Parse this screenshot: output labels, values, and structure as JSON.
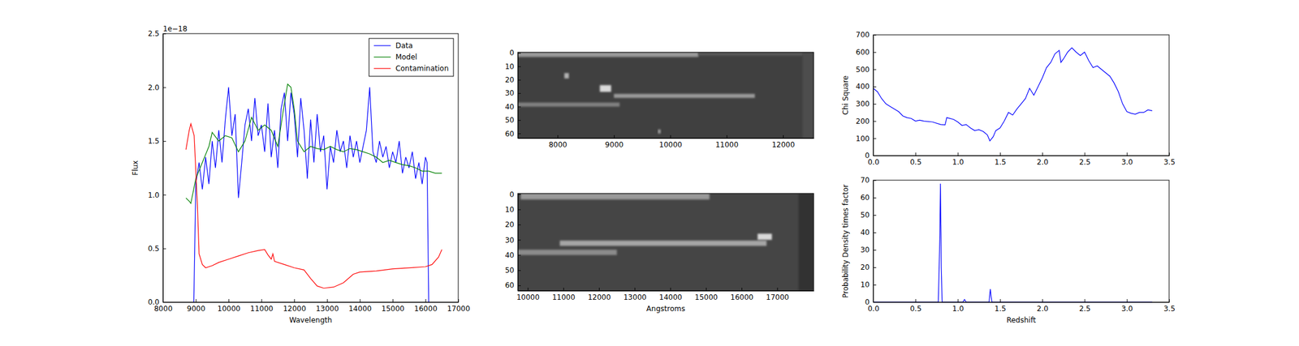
{
  "chart_data": [
    {
      "type": "line",
      "xlabel": "Wavelength",
      "ylabel": "Flux",
      "annotations": [
        "1e−18"
      ],
      "xlim": [
        8000,
        17000
      ],
      "ylim": [
        0,
        2.5
      ],
      "xticks": [
        8000,
        9000,
        10000,
        11000,
        12000,
        13000,
        14000,
        15000,
        16000,
        17000
      ],
      "yticks": [
        {
          "value": 0,
          "label": "0.0"
        },
        0.5,
        {
          "value": 1,
          "label": "1.0"
        },
        1.5,
        {
          "value": 2,
          "label": "2.0"
        },
        2.5
      ],
      "legend": "upper right",
      "series": [
        {
          "name": "Data",
          "color": "#0000ff",
          "x": [
            8940,
            9000,
            9100,
            9200,
            9300,
            9400,
            9500,
            9600,
            9700,
            9800,
            9900,
            10000,
            10100,
            10200,
            10300,
            10400,
            10500,
            10600,
            10700,
            10800,
            10900,
            11000,
            11100,
            11200,
            11300,
            11400,
            11500,
            11600,
            11700,
            11800,
            11900,
            12000,
            12100,
            12200,
            12300,
            12400,
            12500,
            12600,
            12700,
            12800,
            12900,
            13000,
            13100,
            13200,
            13300,
            13400,
            13500,
            13600,
            13700,
            13800,
            13900,
            14000,
            14100,
            14200,
            14300,
            14400,
            14500,
            14600,
            14700,
            14800,
            14900,
            15000,
            15100,
            15200,
            15300,
            15400,
            15500,
            15600,
            15700,
            15800,
            15900,
            16000,
            16050,
            16100
          ],
          "values": [
            0,
            1.1,
            1.3,
            1.05,
            1.35,
            1.1,
            1.5,
            1.25,
            1.6,
            1.3,
            1.7,
            2.0,
            1.55,
            1.75,
            0.97,
            1.3,
            1.65,
            1.8,
            1.5,
            1.9,
            1.55,
            1.65,
            1.4,
            1.85,
            1.35,
            1.6,
            1.25,
            1.8,
            1.95,
            1.5,
            1.95,
            1.75,
            1.35,
            1.9,
            1.6,
            1.15,
            1.7,
            1.3,
            1.75,
            1.4,
            1.55,
            1.05,
            1.45,
            1.3,
            1.6,
            1.4,
            1.5,
            1.25,
            1.55,
            1.35,
            1.5,
            1.3,
            1.45,
            1.6,
            2.0,
            1.4,
            1.3,
            1.5,
            1.35,
            1.45,
            1.25,
            1.4,
            1.3,
            1.5,
            1.2,
            1.35,
            1.25,
            1.4,
            1.15,
            1.3,
            1.1,
            1.35,
            1.3,
            0
          ]
        },
        {
          "name": "Model",
          "color": "#008000",
          "x": [
            8700,
            8800,
            8850,
            9000,
            9200,
            9400,
            9500,
            9700,
            9900,
            10100,
            10300,
            10500,
            10700,
            10900,
            11100,
            11300,
            11500,
            11700,
            11800,
            11900,
            12000,
            12100,
            12300,
            12500,
            12700,
            12900,
            13100,
            13300,
            13500,
            13700,
            13900,
            14100,
            14300,
            14500,
            14700,
            14900,
            15100,
            15300,
            15500,
            15700,
            15900,
            16100,
            16300,
            16500
          ],
          "values": [
            0.97,
            0.94,
            0.92,
            1.15,
            1.3,
            1.45,
            1.58,
            1.5,
            1.55,
            1.53,
            1.4,
            1.5,
            1.72,
            1.6,
            1.65,
            1.6,
            1.45,
            1.85,
            2.03,
            2.0,
            1.8,
            1.5,
            1.4,
            1.45,
            1.43,
            1.42,
            1.45,
            1.42,
            1.4,
            1.43,
            1.42,
            1.4,
            1.38,
            1.35,
            1.3,
            1.32,
            1.3,
            1.28,
            1.27,
            1.25,
            1.22,
            1.22,
            1.2,
            1.2
          ]
        },
        {
          "name": "Contamination",
          "color": "#ff0000",
          "x": [
            8700,
            8800,
            8850,
            8950,
            9050,
            9100,
            9200,
            9300,
            9500,
            9700,
            10000,
            10300,
            10600,
            10900,
            11100,
            11200,
            11300,
            11350,
            11400,
            11700,
            12000,
            12300,
            12500,
            12700,
            12900,
            13200,
            13500,
            13800,
            14000,
            14500,
            15000,
            15500,
            16000,
            16200,
            16400,
            16500
          ],
          "values": [
            1.42,
            1.6,
            1.66,
            1.55,
            0.9,
            0.45,
            0.35,
            0.32,
            0.34,
            0.37,
            0.4,
            0.43,
            0.46,
            0.48,
            0.49,
            0.44,
            0.4,
            0.45,
            0.38,
            0.35,
            0.32,
            0.3,
            0.22,
            0.15,
            0.13,
            0.14,
            0.18,
            0.26,
            0.28,
            0.29,
            0.31,
            0.32,
            0.33,
            0.35,
            0.42,
            0.49
          ]
        }
      ]
    },
    {
      "type": "image",
      "xlim": [
        7294,
        12544
      ],
      "ylim": [
        -0.5,
        63.5
      ],
      "xticks": [
        8000,
        9000,
        10000,
        11000,
        12000
      ],
      "yticks": [
        0,
        10,
        20,
        30,
        40,
        50,
        60
      ],
      "background": 0.25,
      "features": [
        {
          "x": [
            7294,
            10500
          ],
          "y": [
            -0.5,
            3
          ],
          "level": 0.6
        },
        {
          "x": [
            10500,
            12350
          ],
          "y": [
            -0.5,
            2
          ],
          "level": 0.35
        },
        {
          "x": [
            7294,
            9100
          ],
          "y": [
            37,
            40
          ],
          "level": 0.5
        },
        {
          "x": [
            9000,
            11500
          ],
          "y": [
            30.5,
            33.5
          ],
          "level": 0.6
        },
        {
          "x": [
            8750,
            8950
          ],
          "y": [
            24,
            29
          ],
          "level": 0.85
        },
        {
          "x": [
            8120,
            8200
          ],
          "y": [
            15,
            19
          ],
          "level": 0.7
        },
        {
          "x": [
            9780,
            9830
          ],
          "y": [
            57,
            60
          ],
          "level": 0.6
        },
        {
          "x": [
            12350,
            12544
          ],
          "y": [
            -0.5,
            63.5
          ],
          "level": 0.3
        }
      ]
    },
    {
      "type": "image",
      "xlabel": "Angstroms",
      "xlim": [
        9721,
        18023
      ],
      "ylim": [
        -0.5,
        63.5
      ],
      "xticks": [
        10000,
        11000,
        12000,
        13000,
        14000,
        15000,
        16000,
        17000
      ],
      "yticks": [
        0,
        10,
        20,
        30,
        40,
        50,
        60
      ],
      "background": 0.27,
      "features": [
        {
          "x": [
            9800,
            15100
          ],
          "y": [
            -0.5,
            3.5
          ],
          "level": 0.6
        },
        {
          "x": [
            9721,
            12500
          ],
          "y": [
            36.5,
            40
          ],
          "level": 0.55
        },
        {
          "x": [
            10900,
            16700
          ],
          "y": [
            30.5,
            34
          ],
          "level": 0.65
        },
        {
          "x": [
            16450,
            16850
          ],
          "y": [
            26,
            30
          ],
          "level": 0.85
        },
        {
          "x": [
            17600,
            18023
          ],
          "y": [
            -0.5,
            63.5
          ],
          "level": 0.2
        }
      ]
    },
    {
      "type": "line",
      "ylabel": "Chi Square",
      "xlim": [
        0,
        3.5
      ],
      "ylim": [
        0,
        700
      ],
      "xticks": [
        {
          "value": 0,
          "label": "0.0"
        },
        0.5,
        {
          "value": 1,
          "label": "1.0"
        },
        1.5,
        {
          "value": 2,
          "label": "2.0"
        },
        2.5,
        {
          "value": 3,
          "label": "3.0"
        },
        3.5
      ],
      "yticks": [
        0,
        100,
        200,
        300,
        400,
        500,
        600,
        700
      ],
      "series": [
        {
          "color": "#0000ff",
          "x": [
            0,
            0.05,
            0.1,
            0.15,
            0.2,
            0.3,
            0.35,
            0.4,
            0.45,
            0.5,
            0.55,
            0.6,
            0.7,
            0.8,
            0.85,
            0.87,
            0.95,
            1.0,
            1.05,
            1.1,
            1.15,
            1.2,
            1.25,
            1.3,
            1.35,
            1.38,
            1.42,
            1.45,
            1.5,
            1.55,
            1.6,
            1.65,
            1.7,
            1.75,
            1.8,
            1.85,
            1.9,
            1.95,
            2.0,
            2.05,
            2.1,
            2.15,
            2.2,
            2.22,
            2.25,
            2.3,
            2.35,
            2.4,
            2.45,
            2.5,
            2.55,
            2.6,
            2.65,
            2.7,
            2.75,
            2.8,
            2.85,
            2.9,
            2.95,
            3.0,
            3.05,
            3.1,
            3.15,
            3.2,
            3.25,
            3.3
          ],
          "values": [
            390,
            370,
            330,
            300,
            285,
            255,
            230,
            220,
            215,
            200,
            205,
            200,
            195,
            180,
            178,
            220,
            210,
            195,
            175,
            180,
            160,
            145,
            150,
            140,
            120,
            85,
            110,
            145,
            160,
            200,
            250,
            235,
            270,
            300,
            330,
            390,
            350,
            400,
            450,
            510,
            540,
            590,
            610,
            540,
            560,
            600,
            625,
            600,
            580,
            600,
            550,
            510,
            520,
            500,
            480,
            460,
            420,
            370,
            300,
            255,
            245,
            240,
            250,
            250,
            265,
            260
          ]
        }
      ]
    },
    {
      "type": "line",
      "xlabel": "Redshift",
      "ylabel": "Probability Density times factor",
      "xlim": [
        0,
        3.5
      ],
      "ylim": [
        0,
        70
      ],
      "xticks": [
        {
          "value": 0,
          "label": "0.0"
        },
        0.5,
        {
          "value": 1,
          "label": "1.0"
        },
        1.5,
        {
          "value": 2,
          "label": "2.0"
        },
        2.5,
        {
          "value": 3,
          "label": "3.0"
        },
        3.5
      ],
      "yticks": [
        0,
        10,
        20,
        30,
        40,
        50,
        60,
        70
      ],
      "series": [
        {
          "color": "#0000ff",
          "x": [
            0,
            0.77,
            0.785,
            0.795,
            0.805,
            0.815,
            1.06,
            1.08,
            1.1,
            1.37,
            1.385,
            1.395,
            1.405,
            3.3
          ],
          "values": [
            0,
            0,
            30,
            68,
            20,
            0,
            0,
            1.5,
            0,
            0,
            7.5,
            3,
            0,
            0
          ]
        }
      ]
    }
  ]
}
